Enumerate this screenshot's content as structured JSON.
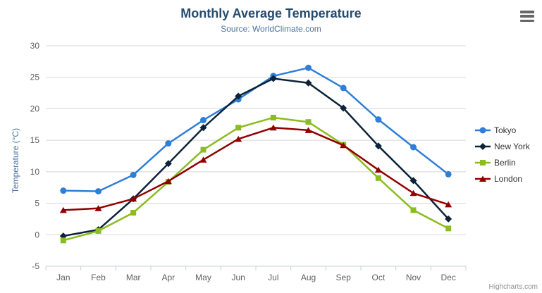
{
  "chart_data": {
    "type": "line",
    "title": "Monthly Average Temperature",
    "subtitle": "Source: WorldClimate.com",
    "xlabel": "",
    "ylabel": "Temperature (°C)",
    "ylim": [
      -5,
      30
    ],
    "ytick_step": 5,
    "grid": true,
    "legend_position": "right",
    "categories": [
      "Jan",
      "Feb",
      "Mar",
      "Apr",
      "May",
      "Jun",
      "Jul",
      "Aug",
      "Sep",
      "Oct",
      "Nov",
      "Dec"
    ],
    "series": [
      {
        "name": "Tokyo",
        "color": "#2f7ed8",
        "marker": "circle",
        "values": [
          7.0,
          6.9,
          9.5,
          14.5,
          18.2,
          21.5,
          25.2,
          26.5,
          23.3,
          18.3,
          13.9,
          9.6
        ]
      },
      {
        "name": "New York",
        "color": "#0d233a",
        "marker": "diamond",
        "values": [
          -0.2,
          0.8,
          5.7,
          11.3,
          17.0,
          22.0,
          24.8,
          24.1,
          20.1,
          14.1,
          8.6,
          2.5
        ]
      },
      {
        "name": "Berlin",
        "color": "#8bbc21",
        "marker": "square",
        "values": [
          -0.9,
          0.6,
          3.5,
          8.4,
          13.5,
          17.0,
          18.6,
          17.9,
          14.3,
          9.0,
          3.9,
          1.0
        ]
      },
      {
        "name": "London",
        "color": "#910000",
        "marker": "triangle",
        "values": [
          3.9,
          4.2,
          5.7,
          8.5,
          11.9,
          15.2,
          17.0,
          16.6,
          14.2,
          10.3,
          6.6,
          4.8
        ]
      }
    ],
    "credits": "Highcharts.com",
    "colors": {
      "grid_line": "#d8d8d8",
      "axis_line": "#c0d0e0",
      "tick_label": "#606060",
      "title_text": "#274b6d",
      "subtitle_text": "#4d759e",
      "legend_text": "#333333",
      "credits_text": "#909090",
      "export_icon": "#666666"
    }
  },
  "ui": {
    "export_icon": "hamburger-menu-icon"
  }
}
